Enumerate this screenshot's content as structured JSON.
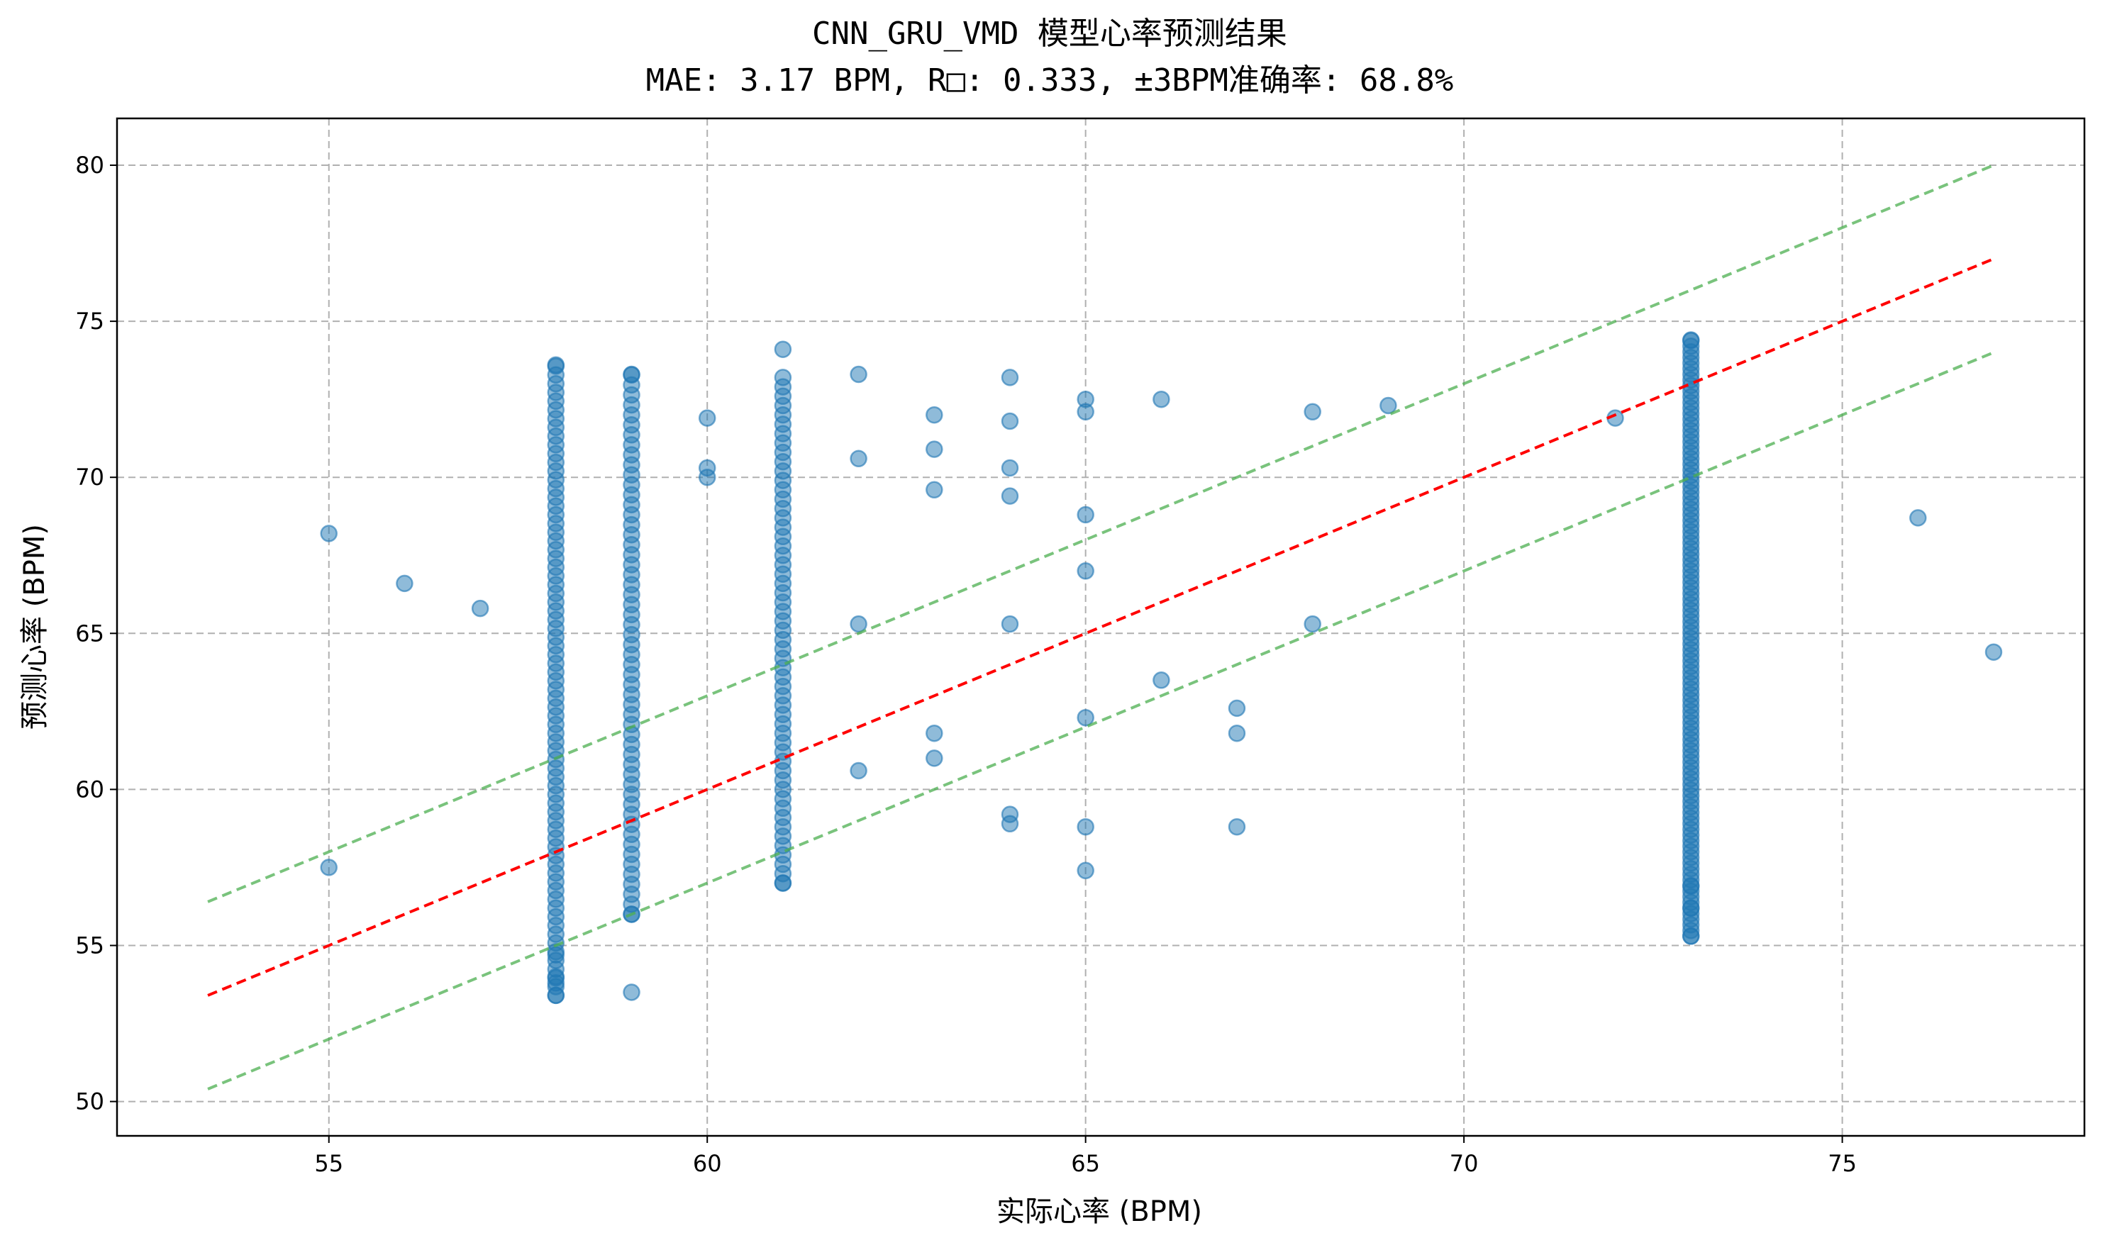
{
  "chart_data": {
    "type": "scatter",
    "title": "CNN_GRU_VMD 模型心率预测结果",
    "subtitle": "MAE: 3.17 BPM, R□: 0.333, ±3BPM准确率: 68.8%",
    "xlabel": "实际心率 (BPM)",
    "ylabel": "预测心率 (BPM)",
    "xlim": [
      52.2,
      78.2
    ],
    "ylim": [
      48.9,
      81.5
    ],
    "xticks": [
      55,
      60,
      65,
      70,
      75
    ],
    "yticks": [
      50,
      55,
      60,
      65,
      70,
      75,
      80
    ],
    "grid": true,
    "colors": {
      "points": "#1f77b4",
      "ideal_line": "#ff0000",
      "band_lines": "#4caf50"
    },
    "reference_lines": {
      "x_range": [
        53.4,
        77.0
      ],
      "ideal_offset": 0,
      "band_offset": 3
    },
    "series": [
      {
        "type": "scatter",
        "x": [
          55,
          55,
          56,
          57,
          62,
          62,
          62,
          62,
          60,
          60,
          60,
          63,
          63,
          63,
          63,
          63,
          64,
          64,
          64,
          64,
          64,
          64,
          64,
          65,
          65,
          65,
          65,
          65,
          65,
          65,
          66,
          66,
          67,
          67,
          67,
          68,
          68,
          69,
          72,
          76,
          77
        ],
        "y": [
          68.2,
          57.5,
          66.6,
          65.8,
          73.3,
          70.6,
          65.3,
          60.6,
          71.9,
          70.3,
          70.0,
          72.0,
          70.9,
          69.6,
          61.8,
          61.0,
          73.2,
          71.8,
          70.3,
          69.4,
          65.3,
          59.2,
          58.9,
          72.5,
          72.1,
          68.8,
          67.0,
          62.3,
          58.8,
          57.4,
          72.5,
          63.5,
          62.6,
          61.8,
          58.8,
          72.1,
          65.3,
          72.3,
          71.9,
          68.7,
          64.4
        ]
      },
      {
        "type": "column",
        "x": 58,
        "y_min": 53.4,
        "y_max": 73.6,
        "step": 0.28,
        "extra": [
          53.4,
          53.8,
          54.0,
          54.7,
          73.6
        ]
      },
      {
        "type": "column",
        "x": 59,
        "y_min": 56.0,
        "y_max": 73.3,
        "step": 0.32,
        "extra": [
          53.5,
          56.0,
          73.3
        ]
      },
      {
        "type": "column",
        "x": 61,
        "y_min": 57.0,
        "y_max": 73.2,
        "step": 0.3,
        "extra": [
          74.1,
          57.0
        ]
      },
      {
        "type": "column",
        "x": 73,
        "y_min": 55.3,
        "y_max": 74.4,
        "step": 0.18,
        "extra": [
          55.3,
          56.9,
          56.2,
          74.4
        ]
      }
    ]
  }
}
